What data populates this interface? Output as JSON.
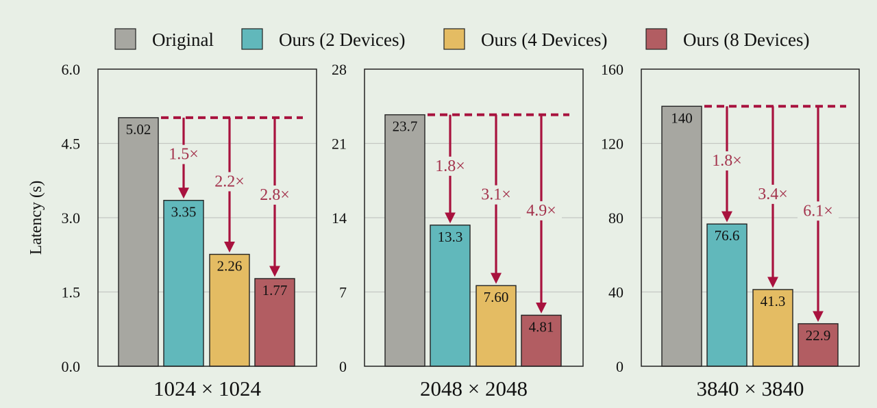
{
  "colors": {
    "background": "#e8efe6",
    "grid": "#c3c7c2",
    "arrow": "#a8123e",
    "speedup_text": "#a3324c"
  },
  "chart_data": {
    "type": "bar",
    "ylabel": "Latency (s)",
    "legend": {
      "placement": "top",
      "entries": [
        {
          "label": "Original",
          "color": "#a7a7a1"
        },
        {
          "label": "Ours (2 Devices)",
          "color": "#61b8bb"
        },
        {
          "label": "Ours (4 Devices)",
          "color": "#e4bc63"
        },
        {
          "label": "Ours (8 Devices)",
          "color": "#b25d62"
        }
      ]
    },
    "panels": [
      {
        "xlabel": "1024 × 1024",
        "ylim": [
          0,
          6
        ],
        "yticks": [
          "0.0",
          "1.5",
          "3.0",
          "4.5",
          "6.0"
        ],
        "ytick_values": [
          0,
          1.5,
          3,
          4.5,
          6
        ],
        "values": [
          5.02,
          3.35,
          2.26,
          1.77
        ],
        "labels": [
          "5.02",
          "3.35",
          "2.26",
          "1.77"
        ],
        "speedups": [
          "1.5×",
          "2.2×",
          "2.8×"
        ],
        "speedup_label_values": [
          4.18,
          3.63,
          3.36
        ]
      },
      {
        "xlabel": "2048 × 2048",
        "ylim": [
          0,
          28
        ],
        "yticks": [
          "0",
          "7",
          "14",
          "21",
          "28"
        ],
        "ytick_values": [
          0,
          7,
          14,
          21,
          28
        ],
        "values": [
          23.7,
          13.3,
          7.6,
          4.81
        ],
        "labels": [
          "23.7",
          "13.3",
          "7.60",
          "4.81"
        ],
        "speedups": [
          "1.8×",
          "3.1×",
          "4.9×"
        ],
        "speedup_label_values": [
          18.4,
          15.7,
          14.2
        ]
      },
      {
        "xlabel": "3840 × 3840",
        "ylim": [
          0,
          160
        ],
        "yticks": [
          "0",
          "40",
          "80",
          "120",
          "160"
        ],
        "ytick_values": [
          0,
          40,
          80,
          120,
          160
        ],
        "values": [
          140,
          76.6,
          41.3,
          22.9
        ],
        "labels": [
          "140",
          "76.6",
          "41.3",
          "22.9"
        ],
        "speedups": [
          "1.8×",
          "3.4×",
          "6.1×"
        ],
        "speedup_label_values": [
          108,
          90,
          81
        ]
      }
    ],
    "grid": true
  }
}
